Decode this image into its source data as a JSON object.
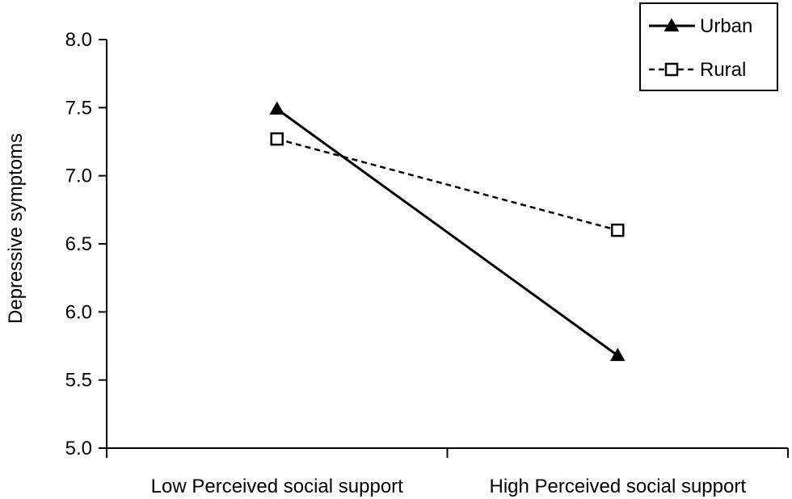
{
  "chart_data": {
    "type": "line",
    "categories": [
      "Low Perceived social support",
      "High Perceived social support"
    ],
    "series": [
      {
        "name": "Urban",
        "values": [
          7.49,
          5.68
        ],
        "line_style": "solid",
        "marker": "filled-triangle",
        "color": "#000000"
      },
      {
        "name": "Rural",
        "values": [
          7.27,
          6.6
        ],
        "line_style": "dashed",
        "marker": "open-square",
        "color": "#000000"
      }
    ],
    "ylabel": "Depressive symptoms",
    "xlabel": "",
    "ylim": [
      5.0,
      8.0
    ],
    "yticks": [
      "5.0",
      "5.5",
      "6.0",
      "6.5",
      "7.0",
      "7.5",
      "8.0"
    ],
    "grid": false,
    "legend_position": "top-right"
  }
}
